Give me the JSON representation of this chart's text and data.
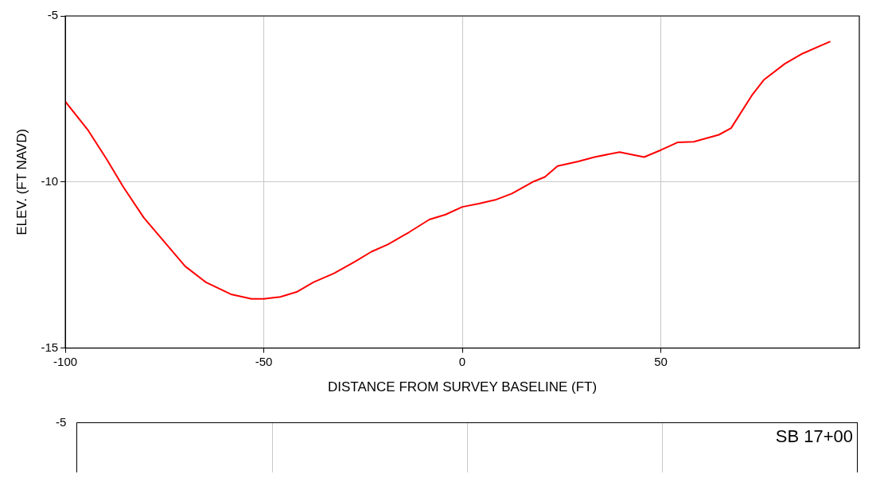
{
  "chart_data": [
    {
      "type": "line",
      "xlabel": "DISTANCE FROM SURVEY BASELINE (FT)",
      "ylabel": "ELEV. (FT NAVD)",
      "xlim": [
        -100,
        100
      ],
      "xticks": [
        -100,
        -50,
        0,
        50
      ],
      "ylim": [
        -15,
        -5
      ],
      "yticks": [
        -15,
        -10,
        -5
      ],
      "grid": true,
      "marker": "none",
      "line_style": "solid",
      "series": [
        {
          "color": "#ff0000",
          "x": [
            -100,
            -94.4,
            -89.6,
            -85.4,
            -80.2,
            -75,
            -69.8,
            -64.6,
            -58.3,
            -53.1,
            -50,
            -45.8,
            -41.7,
            -37.5,
            -32.3,
            -27.1,
            -22.9,
            -18.75,
            -13.5,
            -8.3,
            -4.2,
            0,
            4.2,
            8.3,
            12.5,
            17.7,
            20.8,
            24,
            29.2,
            33.3,
            39.6,
            45.8,
            50,
            54.2,
            58.3,
            64.6,
            67.7,
            72.9,
            76,
            81.25,
            85.4,
            92.7
          ],
          "values": [
            -7.58,
            -8.42,
            -9.31,
            -10.15,
            -11.08,
            -11.81,
            -12.54,
            -13.02,
            -13.38,
            -13.52,
            -13.52,
            -13.46,
            -13.31,
            -13.02,
            -12.75,
            -12.4,
            -12.1,
            -11.88,
            -11.52,
            -11.13,
            -10.98,
            -10.75,
            -10.65,
            -10.54,
            -10.35,
            -10.0,
            -9.85,
            -9.52,
            -9.38,
            -9.25,
            -9.1,
            -9.25,
            -9.04,
            -8.81,
            -8.79,
            -8.58,
            -8.38,
            -7.4,
            -6.92,
            -6.44,
            -6.15,
            -5.77
          ]
        }
      ]
    },
    {
      "type": "other",
      "annotations": [
        "-5",
        "SB 17+00"
      ]
    }
  ]
}
